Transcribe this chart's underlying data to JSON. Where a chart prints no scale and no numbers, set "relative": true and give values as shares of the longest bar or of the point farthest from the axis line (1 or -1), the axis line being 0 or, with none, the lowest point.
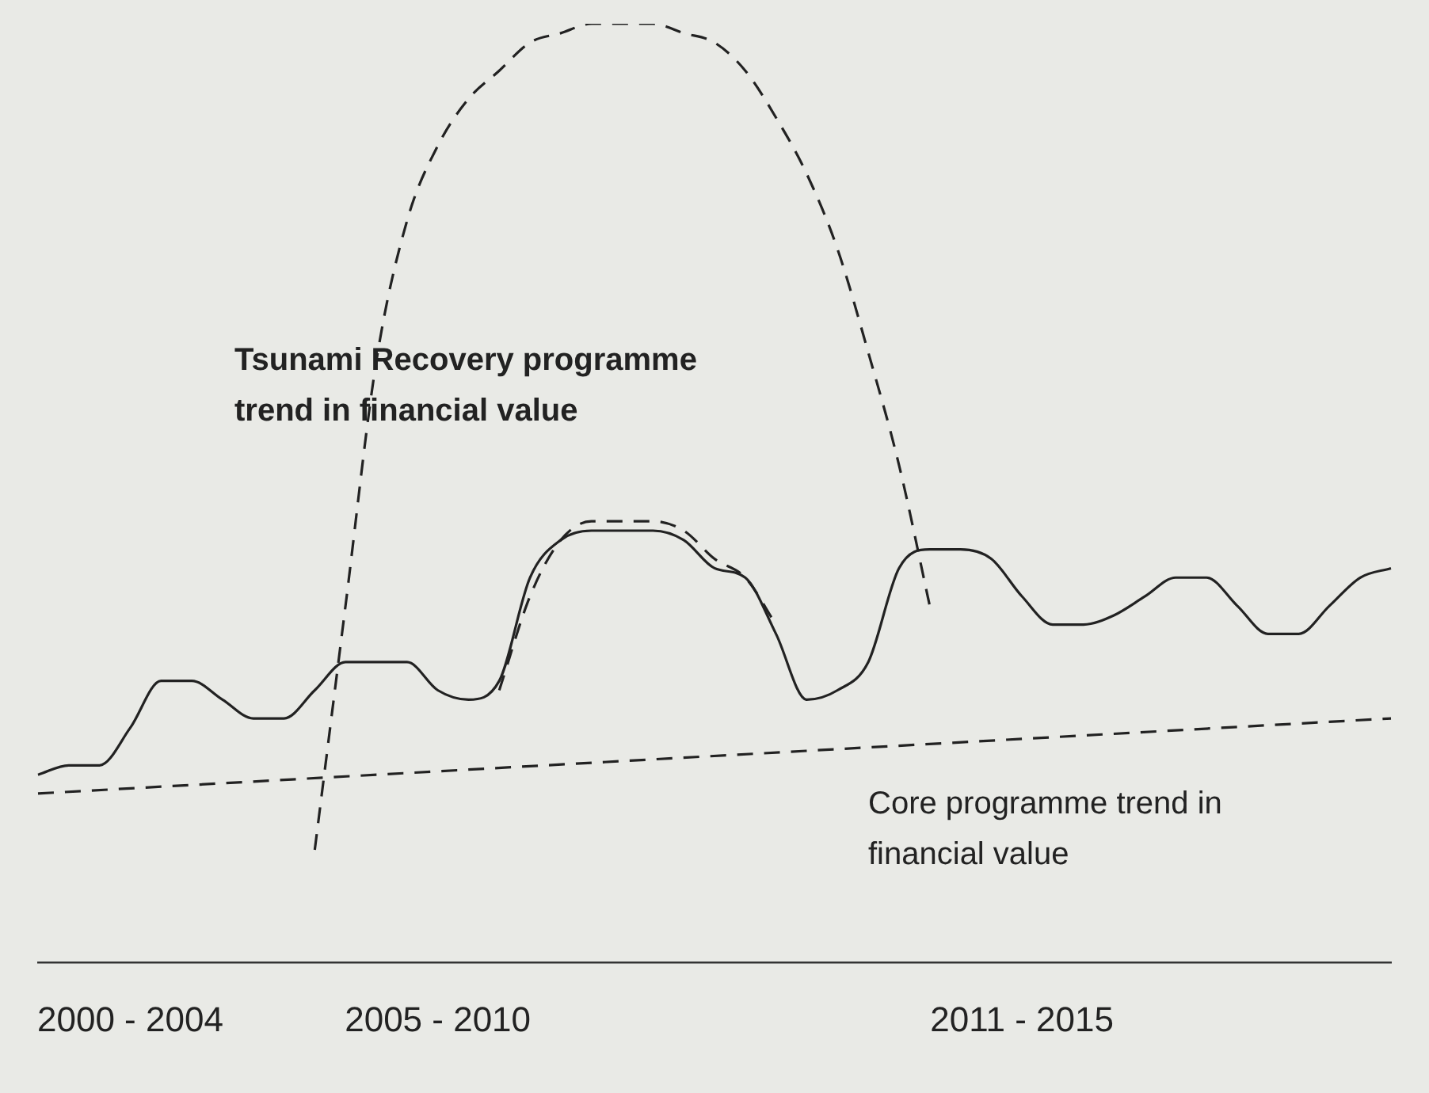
{
  "chart_data": {
    "type": "line",
    "relative": true,
    "categories": [
      null,
      null,
      null,
      "2000 - 2004",
      null,
      null,
      null,
      null,
      null,
      null,
      null,
      null,
      null,
      "2005 - 2010",
      null,
      null,
      null,
      null,
      null,
      null,
      null,
      null,
      null,
      null,
      null,
      null,
      null,
      null,
      null,
      null,
      null,
      null,
      "2011 - 2015",
      null,
      null,
      null,
      null,
      null,
      null,
      null,
      null,
      null,
      null,
      null,
      null
    ],
    "series": [
      {
        "color": "#222222",
        "line_style": "solid",
        "values": [
          0.2,
          0.21,
          0.21,
          0.25,
          0.3,
          0.3,
          0.28,
          0.26,
          0.26,
          0.29,
          0.32,
          0.32,
          0.32,
          0.29,
          0.28,
          0.3,
          0.41,
          0.45,
          0.46,
          0.46,
          0.46,
          0.45,
          0.42,
          0.41,
          0.35,
          0.28,
          0.29,
          0.32,
          0.42,
          0.44,
          0.44,
          0.43,
          0.39,
          0.36,
          0.36,
          0.37,
          0.39,
          0.41,
          0.41,
          0.38,
          0.35,
          0.35,
          0.38,
          0.41,
          0.42
        ]
      },
      {
        "name": "Tsunami Recovery programme trend in financial value",
        "color": "#222222",
        "line_style": "dashed",
        "values": [
          null,
          null,
          null,
          null,
          null,
          null,
          null,
          null,
          null,
          0.12,
          0.38,
          0.64,
          0.79,
          0.87,
          0.92,
          0.95,
          0.98,
          0.99,
          1.0,
          1.0,
          1.0,
          0.99,
          0.98,
          0.95,
          0.9,
          0.84,
          0.76,
          0.65,
          0.53,
          0.38,
          null,
          null,
          null,
          null,
          null,
          null,
          null,
          null,
          null,
          null,
          null,
          null,
          null,
          null,
          null
        ]
      },
      {
        "color": "#222222",
        "line_style": "dashed",
        "values": [
          null,
          null,
          null,
          null,
          null,
          null,
          null,
          null,
          null,
          null,
          null,
          null,
          null,
          null,
          null,
          0.29,
          0.39,
          0.45,
          0.47,
          0.47,
          0.47,
          0.46,
          0.43,
          0.41,
          0.36,
          null,
          null,
          null,
          null,
          null,
          null,
          null,
          null,
          null,
          null,
          null,
          null,
          null,
          null,
          null,
          null,
          null,
          null,
          null,
          null
        ]
      },
      {
        "name": "Core programme trend in financial value",
        "color": "#222222",
        "line_style": "dashed",
        "values": [
          0.18,
          null,
          null,
          null,
          null,
          null,
          null,
          null,
          null,
          null,
          null,
          null,
          null,
          null,
          null,
          null,
          null,
          null,
          null,
          null,
          null,
          null,
          null,
          null,
          null,
          null,
          null,
          null,
          null,
          null,
          null,
          null,
          null,
          null,
          null,
          null,
          null,
          null,
          null,
          null,
          null,
          null,
          null,
          null,
          0.26
        ]
      }
    ],
    "legend": false,
    "grid": false,
    "marker": "none"
  }
}
